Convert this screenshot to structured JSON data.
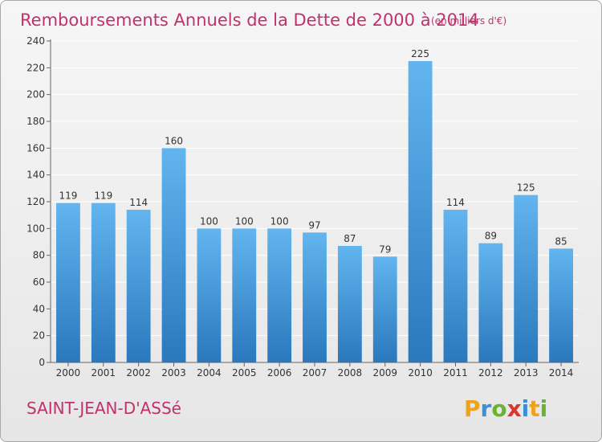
{
  "chart_data": {
    "type": "bar",
    "title": "Remboursements Annuels de la Dette de 2000 à 2014",
    "subtitle": "(en milliers d'€)",
    "categories": [
      "2000",
      "2001",
      "2002",
      "2003",
      "2004",
      "2005",
      "2006",
      "2007",
      "2008",
      "2009",
      "2010",
      "2011",
      "2012",
      "2013",
      "2014"
    ],
    "values": [
      119,
      119,
      114,
      160,
      100,
      100,
      100,
      97,
      87,
      79,
      225,
      114,
      89,
      125,
      85
    ],
    "ylim": [
      0,
      240
    ],
    "yticks": [
      0,
      20,
      40,
      60,
      80,
      100,
      120,
      140,
      160,
      180,
      200,
      220,
      240
    ],
    "grid": true,
    "data_labels": true,
    "bar_color": "#4a9fe0"
  },
  "footer": {
    "city": "SAINT-JEAN-D'ASSé",
    "logo": "Proxiti"
  },
  "colors": {
    "title": "#c0326b",
    "grid": "#ffffff",
    "bar_top": "#5fb3ee",
    "bar_bottom": "#2f7fc4"
  }
}
